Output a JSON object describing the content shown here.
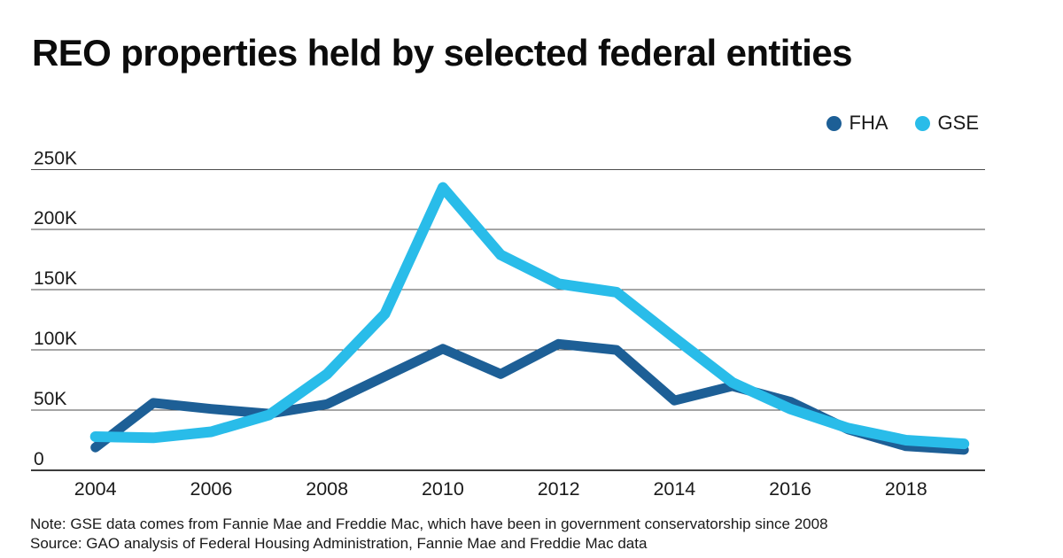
{
  "title": "REO properties held by selected federal entities",
  "legend": [
    {
      "id": "fha",
      "label": "FHA",
      "color": "#1d5f96"
    },
    {
      "id": "gse",
      "label": "GSE",
      "color": "#29bce9"
    }
  ],
  "note": "Note: GSE data comes from Fannie Mae and Freddie Mac, which have been in government conservatorship since 2008",
  "source": "Source: GAO analysis of Federal Housing Administration, Fannie Mae and Freddie Mac data",
  "colors": {
    "fha_line": "#1d5f96",
    "gse_line": "#29bce9",
    "gridline": "#4c4c4c",
    "axis_line": "#3c3c3c",
    "text": "#1a1a1a",
    "title": "#0c0c0c",
    "background": "#ffffff"
  },
  "chart_data": {
    "type": "line",
    "title": "REO properties held by selected federal entities",
    "xlabel": "",
    "ylabel": "",
    "x": [
      2004,
      2005,
      2006,
      2007,
      2008,
      2009,
      2010,
      2011,
      2012,
      2013,
      2014,
      2015,
      2016,
      2017,
      2018,
      2019
    ],
    "series": [
      {
        "name": "FHA",
        "color": "#1d5f96",
        "values": [
          19000,
          56000,
          51000,
          47000,
          55000,
          78000,
          101000,
          80000,
          105000,
          100000,
          58000,
          70000,
          57000,
          34000,
          20000,
          17000
        ]
      },
      {
        "name": "GSE",
        "color": "#29bce9",
        "values": [
          28000,
          27000,
          32000,
          46000,
          80000,
          130000,
          235000,
          179000,
          155000,
          148000,
          110000,
          73000,
          51000,
          35000,
          25000,
          22000
        ]
      }
    ],
    "ylim": [
      0,
      250000
    ],
    "y_ticks": {
      "values": [
        0,
        50000,
        100000,
        150000,
        200000,
        250000
      ],
      "labels": [
        "0",
        "50K",
        "100K",
        "150K",
        "200K",
        "250K"
      ]
    },
    "x_ticks": {
      "values": [
        2004,
        2006,
        2008,
        2010,
        2012,
        2014,
        2016,
        2018
      ],
      "labels": [
        "2004",
        "2006",
        "2008",
        "2010",
        "2012",
        "2014",
        "2016",
        "2018"
      ]
    },
    "grid": "horizontal",
    "legend_position": "top-right"
  }
}
